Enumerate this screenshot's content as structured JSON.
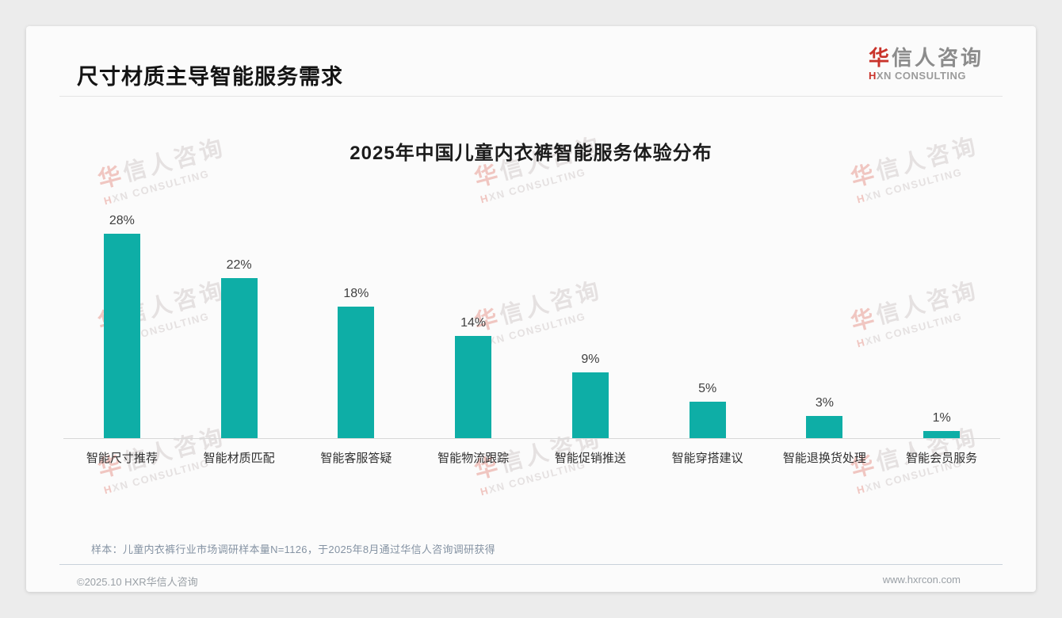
{
  "page": {
    "slide_title": "尺寸材质主导智能服务需求",
    "note": "样本：儿童内衣裤行业市场调研样本量N=1126，于2025年8月通过华信人咨询调研获得",
    "footer_left": "©2025.10 HXR华信人咨询",
    "footer_right": "www.hxrcon.com"
  },
  "logo": {
    "cn_first": "华",
    "cn_rest": "信人咨询",
    "en_first": "H",
    "en_rest": "XN CONSULTING"
  },
  "watermark": {
    "cn_first": "华",
    "cn_rest": "信人咨询",
    "en_first": "H",
    "en_rest": "XN CONSULTING"
  },
  "colors": {
    "bar_teal": "#0EAEA6",
    "accent_red": "#C9332B",
    "note_gray": "#8593A3"
  },
  "chart_data": {
    "type": "bar",
    "title": "2025年中国儿童内衣裤智能服务体验分布",
    "categories": [
      "智能尺寸推荐",
      "智能材质匹配",
      "智能客服答疑",
      "智能物流跟踪",
      "智能促销推送",
      "智能穿搭建议",
      "智能退换货处理",
      "智能会员服务"
    ],
    "values": [
      28,
      22,
      18,
      14,
      9,
      5,
      3,
      1
    ],
    "value_labels": [
      "28%",
      "22%",
      "18%",
      "14%",
      "9%",
      "5%",
      "3%",
      "1%"
    ],
    "unit": "%",
    "bar_color": "#0EAEA6",
    "ylim": [
      0,
      30
    ],
    "grid": false,
    "legend": "none",
    "value_labels_position": "above-bars",
    "baseline_axis": true
  }
}
